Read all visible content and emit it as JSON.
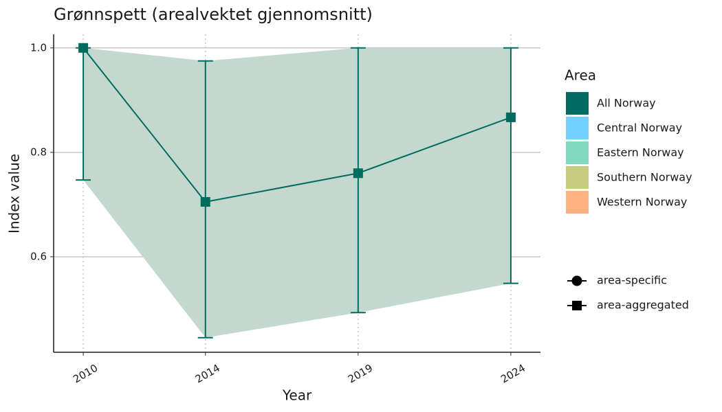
{
  "chart_data": {
    "type": "line",
    "title": "Grønnspett (arealvektet gjennomsnitt)",
    "xlabel": "Year",
    "ylabel": "Index value",
    "x": [
      2010,
      2014,
      2019,
      2024
    ],
    "xlim": [
      2009.03,
      2024.97
    ],
    "xticks": [
      2010,
      2014,
      2019,
      2024
    ],
    "ylim": [
      0.417,
      1.026
    ],
    "yticks": [
      0.6,
      0.8,
      {
        "value": 1,
        "label": "1.0"
      }
    ],
    "grid": true,
    "ribbon_color": "#c3d9cf",
    "series": [
      {
        "color": "#006b5f",
        "shape": "square",
        "values": [
          1.0,
          0.705,
          0.76,
          0.867
        ],
        "lower": [
          0.747,
          0.445,
          0.493,
          0.549
        ],
        "upper": [
          1.0,
          0.975,
          1.0,
          1.0
        ]
      }
    ],
    "legend_title": "Area",
    "areas": [
      {
        "name": "All Norway",
        "color": "#006b63"
      },
      {
        "name": "Central Norway",
        "color": "#73d0ff"
      },
      {
        "name": "Eastern Norway",
        "color": "#80d8be"
      },
      {
        "name": "Southern Norway",
        "color": "#c5cc80"
      },
      {
        "name": "Western Norway",
        "color": "#ffb080"
      }
    ],
    "shapes": [
      {
        "name": "area-specific",
        "shape": "circle"
      },
      {
        "name": "area-aggregated",
        "shape": "square"
      }
    ]
  }
}
